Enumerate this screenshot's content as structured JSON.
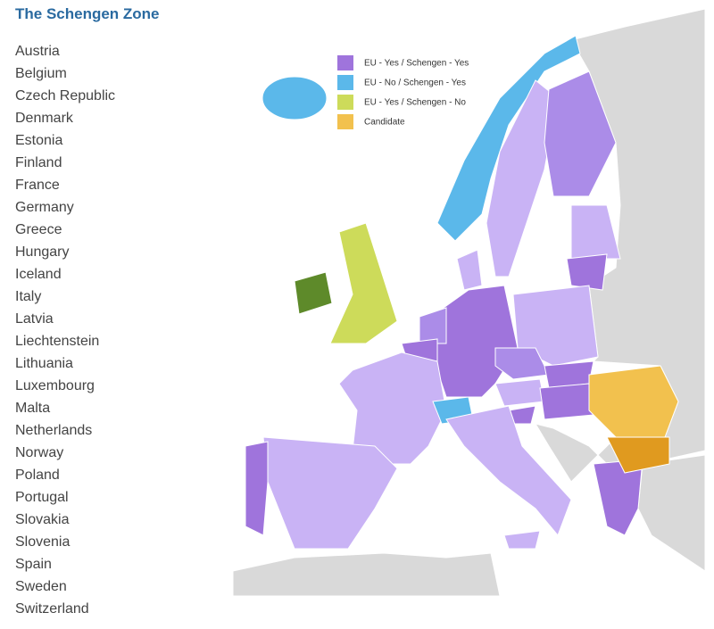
{
  "title": "The Schengen Zone",
  "countries": [
    "Austria",
    "Belgium",
    "Czech Republic",
    "Denmark",
    "Estonia",
    "Finland",
    "France",
    "Germany",
    "Greece",
    "Hungary",
    "Iceland",
    "Italy",
    "Latvia",
    "Liechtenstein",
    "Lithuania",
    "Luxembourg",
    "Malta",
    "Netherlands",
    "Norway",
    "Poland",
    "Portugal",
    "Slovakia",
    "Slovenia",
    "Spain",
    "Sweden",
    "Switzerland"
  ],
  "legend": [
    {
      "label": "EU - Yes / Schengen - Yes",
      "color": "#9f74dc"
    },
    {
      "label": "EU - No / Schengen - Yes",
      "color": "#5bb8ea"
    },
    {
      "label": "EU - Yes / Schengen - No",
      "color": "#cddb5a"
    },
    {
      "label": "Candidate",
      "color": "#f2c14e"
    }
  ]
}
